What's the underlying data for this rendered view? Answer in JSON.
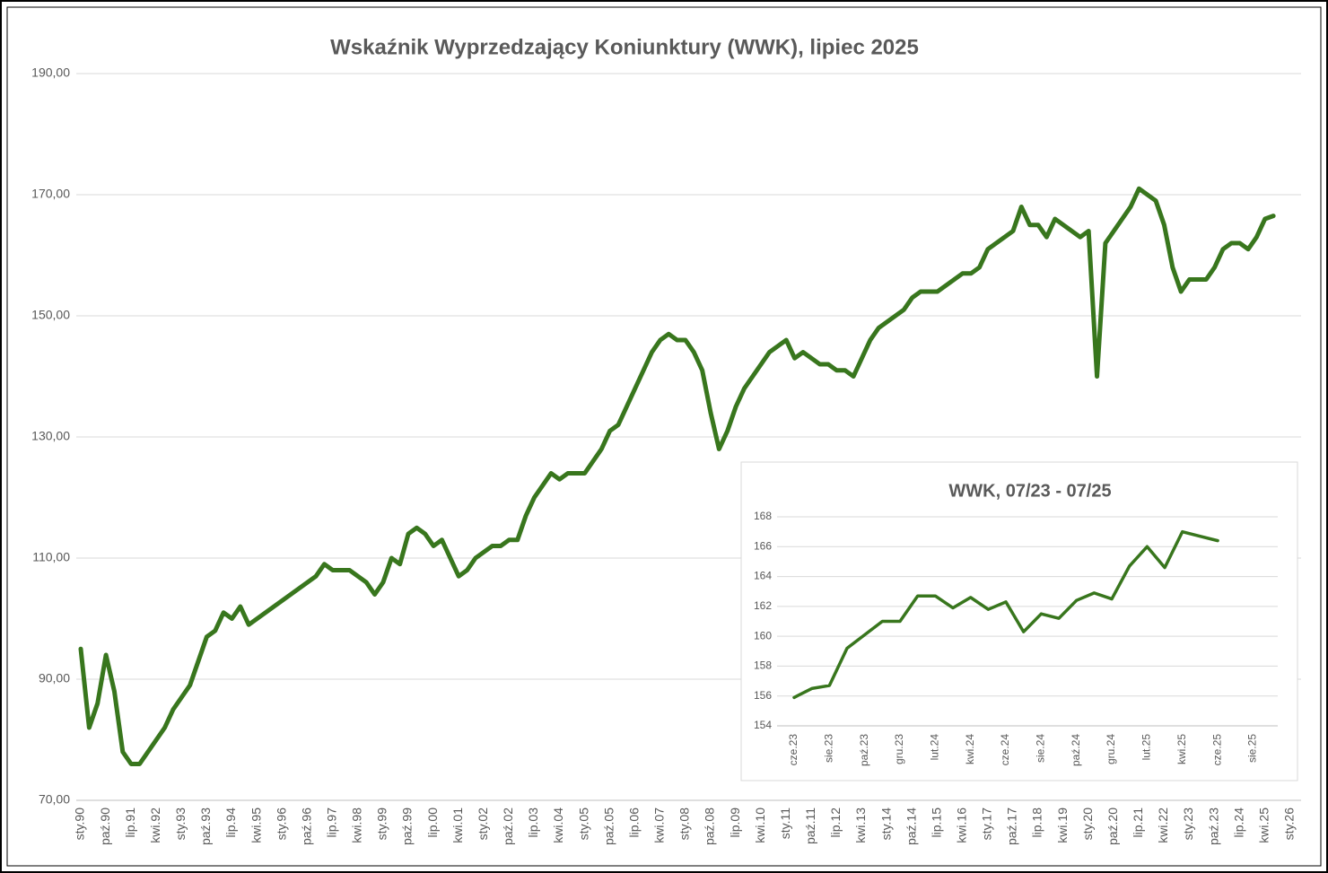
{
  "chart_data": [
    {
      "type": "line",
      "title": "Wskaźnik Wyprzedzający Koniunktury (WWK), lipiec 2025",
      "categories": [
        "sty.90",
        null,
        null,
        "paź.90",
        null,
        null,
        "lip.91",
        null,
        null,
        "kwi.92",
        null,
        null,
        "sty.93",
        null,
        null,
        "paź.93",
        null,
        null,
        "lip.94",
        null,
        null,
        "kwi.95",
        null,
        null,
        "sty.96",
        null,
        null,
        "paź.96",
        null,
        null,
        "lip.97",
        null,
        null,
        "kwi.98",
        null,
        null,
        "sty.99",
        null,
        null,
        "paź.99",
        null,
        null,
        "lip.00",
        null,
        null,
        "kwi.01",
        null,
        null,
        "sty.02",
        null,
        null,
        "paź.02",
        null,
        null,
        "lip.03",
        null,
        null,
        "kwi.04",
        null,
        null,
        "sty.05",
        null,
        null,
        "paź.05",
        null,
        null,
        "lip.06",
        null,
        null,
        "kwi.07",
        null,
        null,
        "sty.08",
        null,
        null,
        "paź.08",
        null,
        null,
        "lip.09",
        null,
        null,
        "kwi.10",
        null,
        null,
        "sty.11",
        null,
        null,
        "paź.11",
        null,
        null,
        "lip.12",
        null,
        null,
        "kwi.13",
        null,
        null,
        "sty.14",
        null,
        null,
        "paź.14",
        null,
        null,
        "lip.15",
        null,
        null,
        "kwi.16",
        null,
        null,
        "sty.17",
        null,
        null,
        "paź.17",
        null,
        null,
        "lip.18",
        null,
        null,
        "kwi.19",
        null,
        null,
        "sty.20",
        null,
        null,
        "paź.20",
        null,
        null,
        "lip.21",
        null,
        null,
        "kwi.22",
        null,
        null,
        "sty.23",
        null,
        null,
        "paź.23",
        null,
        null,
        "lip.24",
        null,
        null,
        "kwi.25",
        null,
        null,
        "sty.26"
      ],
      "values": [
        95,
        82,
        86,
        94,
        88,
        78,
        76,
        76,
        78,
        80,
        82,
        85,
        87,
        89,
        93,
        97,
        98,
        101,
        100,
        102,
        99,
        100,
        101,
        102,
        103,
        104,
        105,
        106,
        107,
        109,
        108,
        108,
        108,
        107,
        106,
        104,
        106,
        110,
        109,
        114,
        115,
        114,
        112,
        113,
        110,
        107,
        108,
        110,
        111,
        112,
        112,
        113,
        113,
        117,
        120,
        122,
        124,
        123,
        124,
        124,
        124,
        126,
        128,
        131,
        132,
        135,
        138,
        141,
        144,
        146,
        147,
        146,
        146,
        144,
        141,
        134,
        128,
        131,
        135,
        138,
        140,
        142,
        144,
        145,
        146,
        143,
        144,
        143,
        142,
        142,
        141,
        141,
        140,
        143,
        146,
        148,
        149,
        150,
        151,
        153,
        154,
        154,
        154,
        155,
        156,
        157,
        157,
        158,
        161,
        162,
        163,
        164,
        168,
        165,
        165,
        163,
        166,
        165,
        164,
        163,
        164,
        140,
        162,
        164,
        166,
        168,
        171,
        170,
        169,
        165,
        158,
        154,
        156,
        156,
        156,
        158,
        161,
        162,
        162,
        161,
        163,
        166,
        166.5,
        null,
        null
      ],
      "color": "#38761d",
      "ylim": [
        70,
        190
      ],
      "yticks": [
        {
          "value": 70,
          "label": "70,00"
        },
        {
          "value": 90,
          "label": "90,00"
        },
        {
          "value": 110,
          "label": "110,00"
        },
        {
          "value": 130,
          "label": "130,00"
        },
        {
          "value": 150,
          "label": "150,00"
        },
        {
          "value": 170,
          "label": "170,00"
        },
        {
          "value": 190,
          "label": "190,00"
        }
      ],
      "grid": true
    },
    {
      "type": "line",
      "title": "WWK, 07/23 - 07/25",
      "categories": [
        "cze.23",
        null,
        "sie.23",
        null,
        "paź.23",
        null,
        "gru.23",
        null,
        "lut.24",
        null,
        "kwi.24",
        null,
        "cze.24",
        null,
        "sie.24",
        null,
        "paź.24",
        null,
        "gru.24",
        null,
        "lut.25",
        null,
        "kwi.25",
        null,
        "cze.25",
        null,
        "sie.25",
        null
      ],
      "values": [
        155.9,
        156.5,
        156.7,
        159.2,
        160.1,
        161.0,
        161.0,
        162.7,
        162.7,
        161.9,
        162.6,
        161.8,
        162.3,
        160.3,
        161.5,
        161.2,
        162.4,
        162.9,
        162.5,
        164.7,
        166.0,
        164.6,
        167.0,
        166.7,
        166.4,
        null,
        null,
        null
      ],
      "color": "#38761d",
      "ylim": [
        154,
        168
      ],
      "yticks": [
        154,
        156,
        158,
        160,
        162,
        164,
        166,
        168
      ],
      "grid": true
    }
  ]
}
